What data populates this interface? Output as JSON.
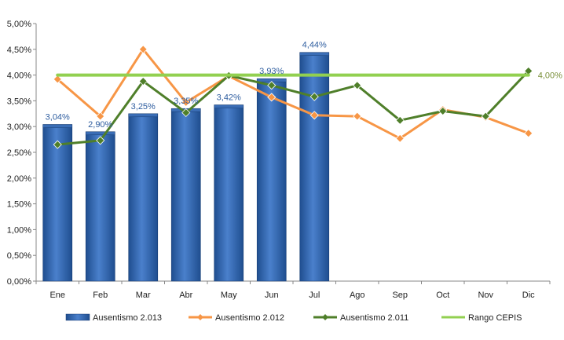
{
  "chart_data": {
    "type": "bar",
    "categories": [
      "Ene",
      "Feb",
      "Mar",
      "Abr",
      "May",
      "Jun",
      "Jul",
      "Ago",
      "Sep",
      "Oct",
      "Nov",
      "Dic"
    ],
    "ylim": [
      0,
      5.0
    ],
    "yticks": [
      "0,00%",
      "0,50%",
      "1,00%",
      "1,50%",
      "2,00%",
      "2,50%",
      "3,00%",
      "3,50%",
      "4,00%",
      "4,50%",
      "5,00%"
    ],
    "y_unit": "percent",
    "grid": false,
    "legend_position": "bottom",
    "series": [
      {
        "name": "Ausentismo 2.013",
        "type": "bar",
        "color": "#2E64B0",
        "values": [
          3.04,
          2.9,
          3.25,
          3.35,
          3.42,
          3.93,
          4.44,
          null,
          null,
          null,
          null,
          null
        ],
        "labels": [
          "3,04%",
          "2,90%",
          "3,25%",
          "3,35%",
          "3,42%",
          "3,93%",
          "4,44%",
          "",
          "",
          "",
          "",
          ""
        ]
      },
      {
        "name": "Ausentismo 2.012",
        "type": "line",
        "color": "#F79646",
        "values": [
          3.92,
          3.2,
          4.5,
          3.47,
          3.98,
          3.57,
          3.22,
          3.2,
          2.77,
          3.33,
          3.18,
          2.87
        ]
      },
      {
        "name": "Ausentismo 2.011",
        "type": "line",
        "color": "#4F7F2A",
        "values": [
          2.65,
          2.73,
          3.88,
          3.27,
          3.99,
          3.8,
          3.58,
          3.8,
          3.12,
          3.3,
          3.2,
          4.08
        ]
      },
      {
        "name": "Rango CEPIS",
        "type": "line",
        "color": "#92D050",
        "values": [
          4.0,
          4.0,
          4.0,
          4.0,
          4.0,
          4.0,
          4.0,
          4.0,
          4.0,
          4.0,
          4.0,
          4.0
        ],
        "end_label": "4,00%"
      }
    ]
  }
}
